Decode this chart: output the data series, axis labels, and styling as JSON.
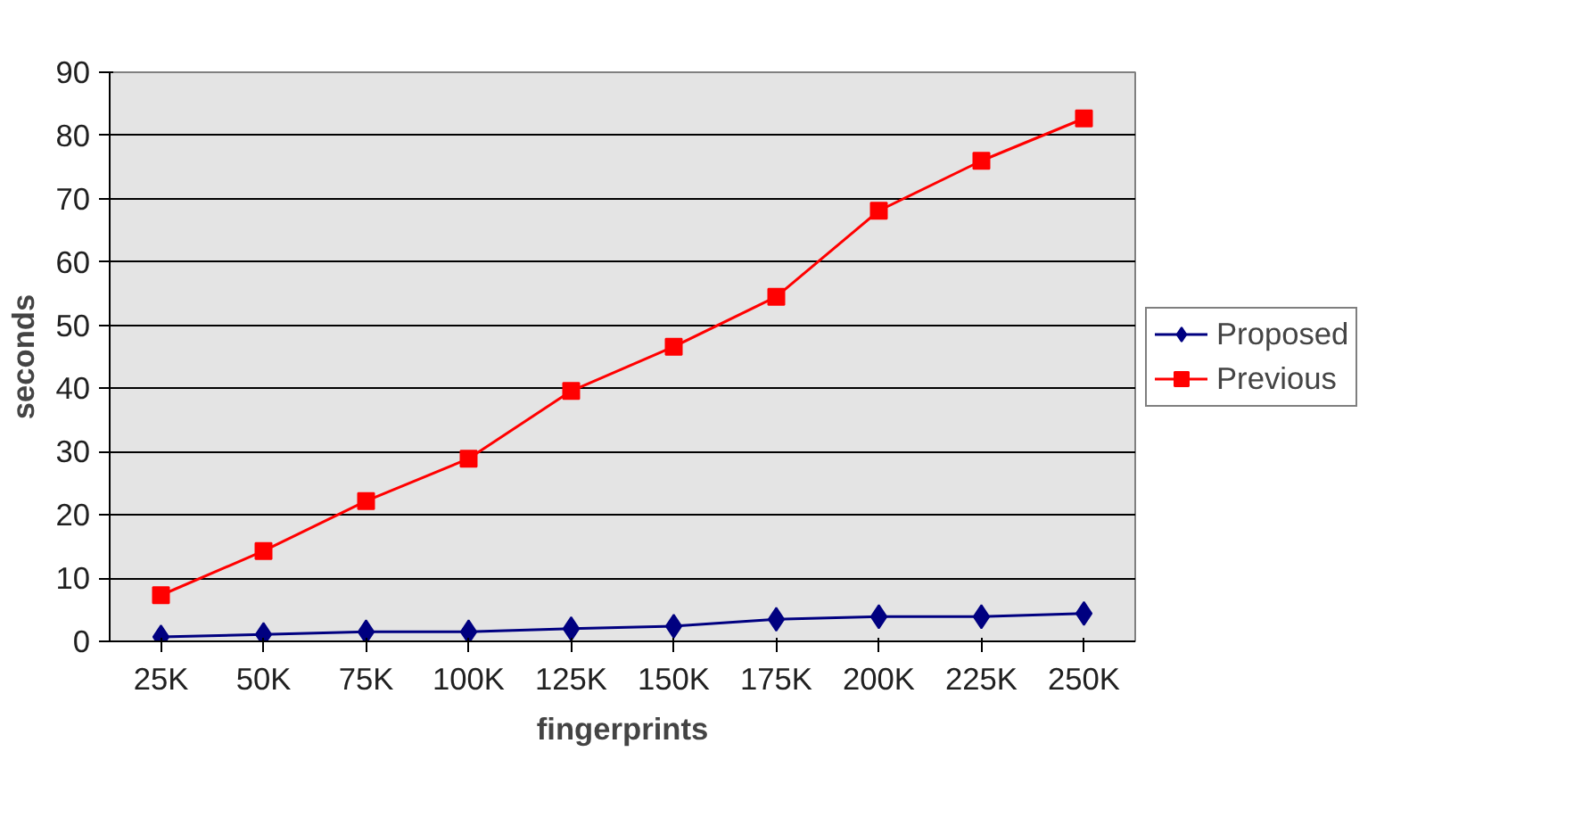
{
  "chart_data": {
    "type": "line",
    "xlabel": "fingerprints",
    "ylabel": "seconds",
    "categories": [
      "25K",
      "50K",
      "75K",
      "100K",
      "125K",
      "150K",
      "175K",
      "200K",
      "225K",
      "250K"
    ],
    "series": [
      {
        "name": "Proposed",
        "color": "#000080",
        "marker": "diamond",
        "values": [
          0.7,
          1.1,
          1.5,
          1.5,
          2.0,
          2.4,
          3.5,
          3.9,
          3.9,
          4.4
        ]
      },
      {
        "name": "Previous",
        "color": "#ff0000",
        "marker": "square",
        "values": [
          7.3,
          14.3,
          22.2,
          28.9,
          39.6,
          46.6,
          54.5,
          68.1,
          76.0,
          82.7
        ]
      }
    ],
    "ylim": [
      0,
      90
    ],
    "yticks": [
      0,
      10,
      20,
      30,
      40,
      50,
      60,
      70,
      80,
      90
    ],
    "grid": "y",
    "legend": "right",
    "line_style": "solid"
  }
}
